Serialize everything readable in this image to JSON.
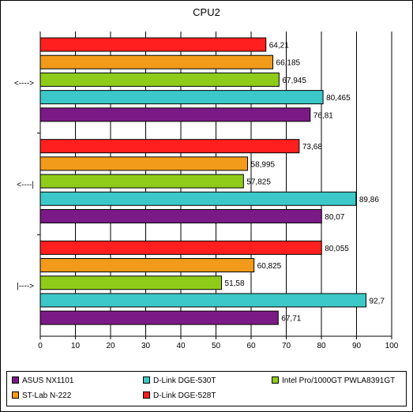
{
  "chart_data": {
    "type": "bar",
    "orientation": "horizontal",
    "title": "CPU2",
    "categories": [
      "<---->",
      "<----|",
      "|---->"
    ],
    "series": [
      {
        "name": "ASUS NX1101",
        "color": "#7b1a86",
        "values": [
          76.81,
          80.07,
          67.71
        ],
        "labels": [
          "76,81",
          "80,07",
          "67,71"
        ]
      },
      {
        "name": "D-Link DGE-530T",
        "color": "#3cc8c8",
        "values": [
          80.465,
          89.86,
          92.7
        ],
        "labels": [
          "80,465",
          "89,86",
          "92,7"
        ]
      },
      {
        "name": "Intel Pro/1000GT PWLA8391GT",
        "color": "#8fcc1a",
        "values": [
          67.945,
          57.825,
          51.58
        ],
        "labels": [
          "67,945",
          "57,825",
          "51,58"
        ]
      },
      {
        "name": "ST-Lab N-222",
        "color": "#f29b1a",
        "values": [
          66.185,
          58.995,
          60.825
        ],
        "labels": [
          "66,185",
          "58,995",
          "60,825"
        ]
      },
      {
        "name": "D-Link DGE-528T",
        "color": "#ff1f1f",
        "values": [
          64.21,
          73.68,
          80.055
        ],
        "labels": [
          "64,21",
          "73,68",
          "80,055"
        ]
      }
    ],
    "xlim": [
      0,
      100
    ],
    "xticks": [
      "0",
      "10",
      "20",
      "30",
      "40",
      "50",
      "60",
      "70",
      "80",
      "90",
      "100"
    ],
    "grid": true,
    "legend_position": "bottom"
  }
}
